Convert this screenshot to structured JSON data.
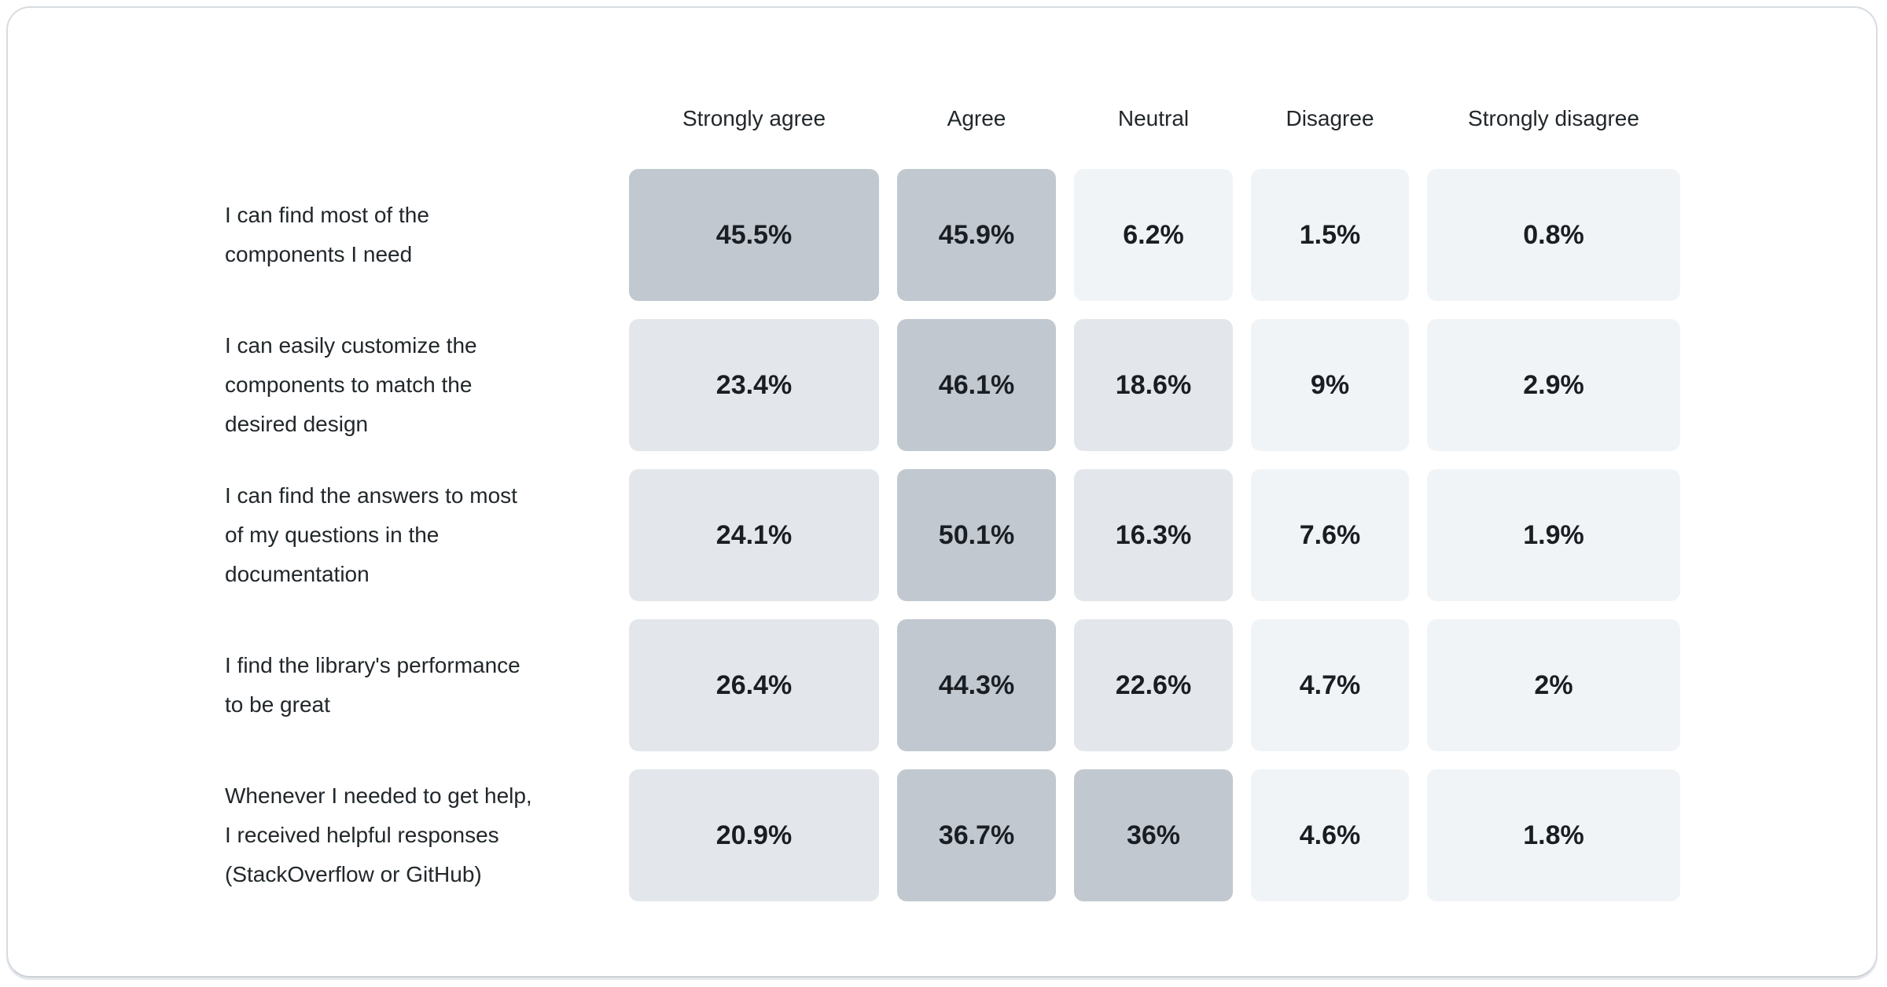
{
  "chart_data": {
    "type": "heatmap",
    "title": "",
    "columns": [
      "Strongly agree",
      "Agree",
      "Neutral",
      "Disagree",
      "Strongly disagree"
    ],
    "rows": [
      {
        "label": "I can find most of the components I need",
        "label_lines": [
          "I can find most of the",
          "components I need"
        ],
        "values": [
          "45.5%",
          "45.9%",
          "6.2%",
          "1.5%",
          "0.8%"
        ],
        "numbers": [
          45.5,
          45.9,
          6.2,
          1.5,
          0.8
        ]
      },
      {
        "label": "I can easily customize the components to match the desired design",
        "label_lines": [
          "I can easily customize the",
          "components to match the",
          "desired design"
        ],
        "values": [
          "23.4%",
          "46.1%",
          "18.6%",
          "9%",
          "2.9%"
        ],
        "numbers": [
          23.4,
          46.1,
          18.6,
          9,
          2.9
        ]
      },
      {
        "label": "I can find the answers to most of my questions in the documentation",
        "label_lines": [
          "I can find the answers to most",
          "of my questions in the",
          "documentation"
        ],
        "values": [
          "24.1%",
          "50.1%",
          "16.3%",
          "7.6%",
          "1.9%"
        ],
        "numbers": [
          24.1,
          50.1,
          16.3,
          7.6,
          1.9
        ]
      },
      {
        "label": "I find the library's performance to be great",
        "label_lines": [
          "I find the library's performance",
          "to be great"
        ],
        "values": [
          "26.4%",
          "44.3%",
          "22.6%",
          "4.7%",
          "2%"
        ],
        "numbers": [
          26.4,
          44.3,
          22.6,
          4.7,
          2
        ]
      },
      {
        "label": "Whenever I needed to get help, I received helpful responses (StackOverflow or GitHub)",
        "label_lines": [
          "Whenever I needed to get help,",
          "I received helpful responses",
          "(StackOverflow or GitHub)"
        ],
        "values": [
          "20.9%",
          "36.7%",
          "36%",
          "4.6%",
          "1.8%"
        ],
        "numbers": [
          20.9,
          36.7,
          36,
          4.6,
          1.8
        ]
      }
    ],
    "value_range": [
      0.8,
      50.1
    ],
    "color_scale": {
      "thresholds": [
        10,
        30
      ],
      "colors": [
        "#f1f4f7",
        "#e3e7ec",
        "#c1c8d0"
      ]
    },
    "text_color": "#21272a",
    "value_text_color": "#1a1e23",
    "layout": {
      "legend": "none",
      "grid": "off"
    }
  }
}
